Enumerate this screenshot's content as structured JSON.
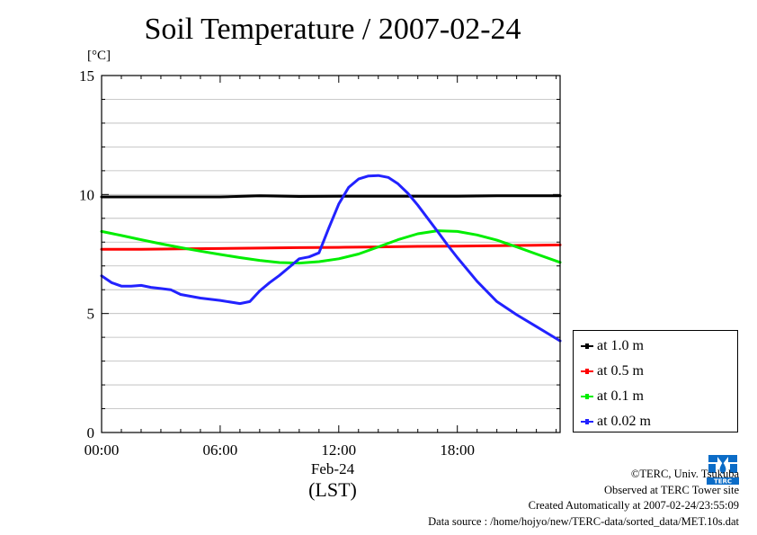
{
  "chart_data": {
    "type": "line",
    "title": "Soil Temperature / 2007-02-24",
    "ylabel": "[°C]",
    "ylim": [
      0,
      15
    ],
    "yticks": [
      0,
      5,
      10,
      15
    ],
    "xlim": [
      0,
      23.2
    ],
    "xticks": [
      {
        "value": 0,
        "label": "00:00"
      },
      {
        "value": 6,
        "label": "06:00"
      },
      {
        "value": 12,
        "label": "12:00"
      },
      {
        "value": 18,
        "label": "18:00"
      }
    ],
    "xdate_label": "Feb-24",
    "xunit_label": "(LST)",
    "grid": true,
    "legend_position": "right",
    "series": [
      {
        "name": "at 1.0 m",
        "color": "#000000",
        "x": [
          0,
          2,
          4,
          6,
          8,
          10,
          12,
          14,
          16,
          18,
          20,
          22,
          23.2
        ],
        "y": [
          9.9,
          9.9,
          9.9,
          9.9,
          9.95,
          9.92,
          9.93,
          9.93,
          9.93,
          9.93,
          9.95,
          9.95,
          9.95
        ]
      },
      {
        "name": "at 0.5 m",
        "color": "#ff0000",
        "x": [
          0,
          2,
          4,
          6,
          8,
          10,
          12,
          14,
          16,
          18,
          20,
          22,
          23.2
        ],
        "y": [
          7.7,
          7.7,
          7.72,
          7.73,
          7.75,
          7.77,
          7.78,
          7.8,
          7.82,
          7.83,
          7.85,
          7.87,
          7.88
        ]
      },
      {
        "name": "at 0.1 m",
        "color": "#00ee00",
        "x": [
          0,
          1,
          2,
          3,
          4,
          5,
          6,
          7,
          8,
          9,
          10,
          11,
          12,
          13,
          14,
          15,
          16,
          17,
          18,
          19,
          20,
          21,
          22,
          23.2
        ],
        "y": [
          8.45,
          8.28,
          8.1,
          7.93,
          7.77,
          7.62,
          7.48,
          7.35,
          7.23,
          7.14,
          7.12,
          7.18,
          7.3,
          7.5,
          7.8,
          8.1,
          8.35,
          8.48,
          8.45,
          8.3,
          8.08,
          7.8,
          7.5,
          7.15
        ]
      },
      {
        "name": "at 0.02 m",
        "color": "#2222ff",
        "x": [
          0,
          0.5,
          1,
          1.5,
          2,
          2.5,
          3,
          3.5,
          4,
          5,
          6,
          7,
          7.5,
          8,
          8.5,
          9,
          9.5,
          10,
          10.5,
          11,
          11.5,
          12,
          12.5,
          13,
          13.5,
          14,
          14.5,
          15,
          15.5,
          16,
          16.5,
          17,
          17.5,
          18,
          19,
          20,
          21,
          22,
          23.2
        ],
        "y": [
          6.58,
          6.3,
          6.15,
          6.15,
          6.18,
          6.1,
          6.05,
          6.0,
          5.8,
          5.65,
          5.55,
          5.42,
          5.5,
          5.95,
          6.3,
          6.6,
          6.95,
          7.3,
          7.38,
          7.55,
          8.6,
          9.6,
          10.3,
          10.65,
          10.78,
          10.8,
          10.72,
          10.45,
          10.05,
          9.55,
          9.0,
          8.45,
          7.88,
          7.35,
          6.35,
          5.5,
          4.95,
          4.45,
          3.85
        ]
      }
    ]
  },
  "credits": {
    "line1": "©TERC, Univ. Tsukuba",
    "line2": "Observed at TERC Tower site",
    "line3": "Created Automatically at 2007-02-24/23:55:09",
    "line4": "Data source : /home/hojyo/new/TERC-data/sorted_data/MET.10s.dat"
  },
  "logo": {
    "text": "TERC",
    "color": "#0b6cc7"
  }
}
